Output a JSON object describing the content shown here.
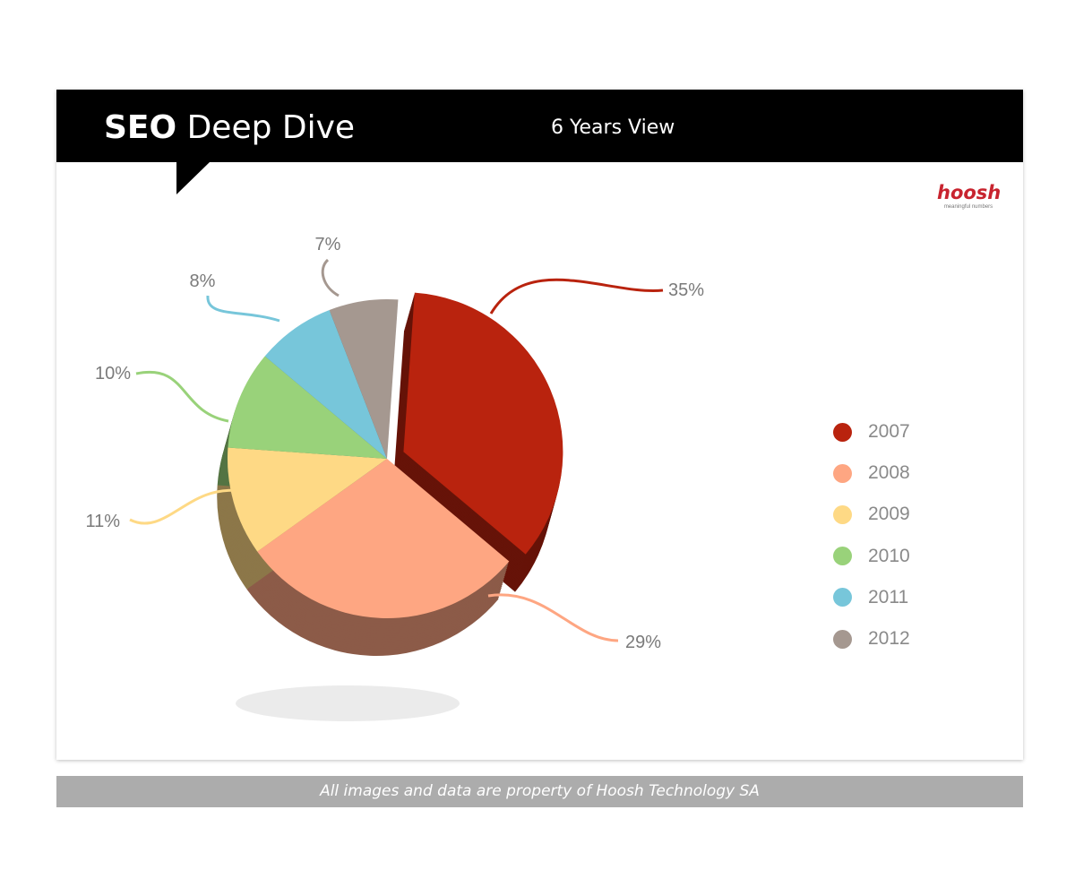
{
  "header": {
    "title_bold": "SEO",
    "title_rest": "Deep Dive",
    "subtitle": "6 Years View"
  },
  "logo": {
    "word": "hoosh",
    "tagline": "meaningful numbers"
  },
  "footer": {
    "text": "All images and data are property of Hoosh Technology SA"
  },
  "colors": {
    "header_bg": "#000000",
    "footer_bg": "#acacac",
    "brand": "#c8242f"
  },
  "chart_data": {
    "type": "pie",
    "title": "",
    "categories": [
      "2007",
      "2008",
      "2009",
      "2010",
      "2011",
      "2012"
    ],
    "values": [
      35,
      29,
      11,
      10,
      8,
      7
    ],
    "value_labels": [
      "35%",
      "29%",
      "11%",
      "10%",
      "8%",
      "7%"
    ],
    "colors": [
      "#b9230e",
      "#fea682",
      "#fed985",
      "#99d27a",
      "#77c6da",
      "#a59890"
    ],
    "style": "3d-exploded",
    "exploded": [
      "2007"
    ],
    "legend_position": "right"
  }
}
